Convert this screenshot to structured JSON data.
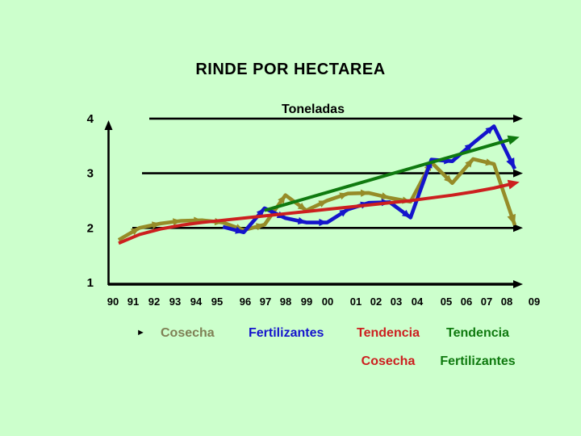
{
  "title": "RINDE POR HECTAREA",
  "chart_data": {
    "type": "line",
    "title": "RINDE POR HECTAREA",
    "axis_title": "Toneladas",
    "categories": [
      "90",
      "91",
      "92",
      "93",
      "94",
      "95",
      "96",
      "97",
      "98",
      "99",
      "00",
      "01",
      "02",
      "03",
      "04",
      "05",
      "06",
      "07",
      "08",
      "09"
    ],
    "y_ticks": [
      4,
      3,
      2,
      1
    ],
    "ylim": [
      1,
      4
    ],
    "grid": "horizontal-arrow-lines",
    "legend_position": "bottom",
    "axis_color": "#000000",
    "series": [
      {
        "name": "Cosecha",
        "color": "#968c28",
        "style": "arrow-line",
        "values": [
          1.78,
          2.0,
          2.08,
          2.13,
          2.14,
          2.1,
          1.96,
          2.06,
          2.6,
          2.32,
          2.5,
          2.63,
          2.64,
          2.55,
          2.48,
          3.2,
          2.82,
          3.26,
          3.17,
          2.05
        ]
      },
      {
        "name": "Fertilizantes",
        "color": "#1414cc",
        "style": "arrow-line",
        "values": [
          null,
          null,
          null,
          null,
          null,
          2.02,
          1.92,
          2.36,
          2.18,
          2.1,
          2.1,
          2.34,
          2.46,
          2.47,
          2.19,
          3.25,
          3.22,
          3.55,
          3.86,
          3.08
        ]
      },
      {
        "name": "Tendencia Cosecha",
        "color": "#cc1f1f",
        "style": "trend",
        "values": [
          1.72,
          1.88,
          1.98,
          2.05,
          2.1,
          2.14,
          2.18,
          2.22,
          2.26,
          2.3,
          2.34,
          2.38,
          2.42,
          2.46,
          2.5,
          2.55,
          2.6,
          2.66,
          2.73,
          2.82
        ]
      },
      {
        "name": "Tendencia Fertilizantes",
        "color": "#0f7a0f",
        "style": "trend",
        "values": [
          null,
          null,
          null,
          null,
          null,
          null,
          null,
          2.32,
          2.43,
          2.54,
          2.65,
          2.76,
          2.87,
          2.98,
          3.09,
          3.2,
          3.31,
          3.42,
          3.53,
          3.64
        ]
      }
    ]
  },
  "legend": {
    "marker": "►",
    "marker_color": "#000000",
    "items": [
      {
        "line1": "Cosecha",
        "line2": "",
        "color": "#7f8055"
      },
      {
        "line1": "Fertilizantes",
        "line2": "",
        "color": "#1414cc"
      },
      {
        "line1": "Tendencia",
        "line2": "Cosecha",
        "color": "#cc1f1f"
      },
      {
        "line1": "Tendencia",
        "line2": "Fertilizantes",
        "color": "#0f7a0f"
      }
    ]
  }
}
